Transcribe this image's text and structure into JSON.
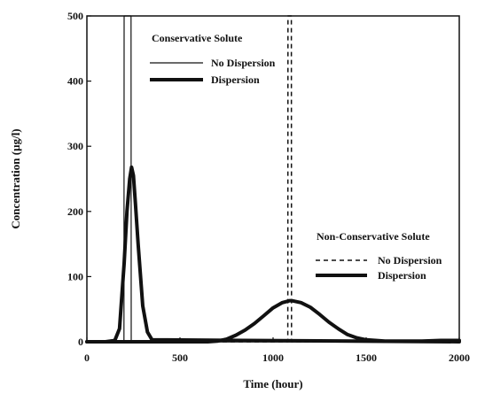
{
  "chart_data": {
    "type": "line",
    "xlabel": "Time (hour)",
    "ylabel": "Concentration (µg/l)",
    "xlim": [
      0,
      2000
    ],
    "ylim": [
      0,
      500
    ],
    "xticks": [
      0,
      500,
      1000,
      1500,
      2000
    ],
    "yticks": [
      0,
      100,
      200,
      300,
      400,
      500
    ],
    "grid": false,
    "legends": [
      {
        "title": "Conservative Solute",
        "placement": "top-left",
        "entries": [
          {
            "label": "No Dispersion",
            "style": "thin-solid"
          },
          {
            "label": "Dispersion",
            "style": "thick-solid"
          }
        ]
      },
      {
        "title": "Non-Conservative Solute",
        "placement": "center-right",
        "entries": [
          {
            "label": "No Dispersion",
            "style": "dashed"
          },
          {
            "label": "Dispersion",
            "style": "thick-solid"
          }
        ]
      }
    ],
    "series": [
      {
        "style": "thin-solid",
        "group": 0,
        "x": [
          0,
          199,
          200,
          201,
          236,
          237,
          238,
          2000
        ],
        "y": [
          0,
          0,
          500,
          500,
          500,
          500,
          0,
          0
        ]
      },
      {
        "style": "thick-solid",
        "group": 0,
        "x": [
          0,
          100,
          150,
          175,
          200,
          215,
          230,
          240,
          250,
          260,
          275,
          300,
          325,
          350,
          2000
        ],
        "y": [
          0,
          0,
          2,
          20,
          120,
          200,
          250,
          268,
          255,
          215,
          150,
          55,
          15,
          3,
          0
        ]
      },
      {
        "style": "dashed",
        "group": 1,
        "x": [
          0,
          1079,
          1080,
          1081,
          1097,
          1098,
          1099,
          2000
        ],
        "y": [
          0,
          0,
          500,
          500,
          500,
          500,
          0,
          0
        ]
      },
      {
        "style": "thick-solid",
        "group": 1,
        "x": [
          0,
          650,
          700,
          750,
          800,
          850,
          900,
          950,
          1000,
          1050,
          1090,
          1100,
          1150,
          1200,
          1250,
          1300,
          1350,
          1400,
          1450,
          1500,
          1550,
          1600,
          1700,
          1800,
          1900,
          2000
        ],
        "y": [
          0,
          0,
          1,
          4,
          10,
          18,
          28,
          40,
          52,
          60,
          63,
          63,
          60,
          53,
          42,
          30,
          20,
          11,
          6,
          3,
          2,
          1,
          1,
          1,
          2,
          2
        ]
      }
    ]
  }
}
